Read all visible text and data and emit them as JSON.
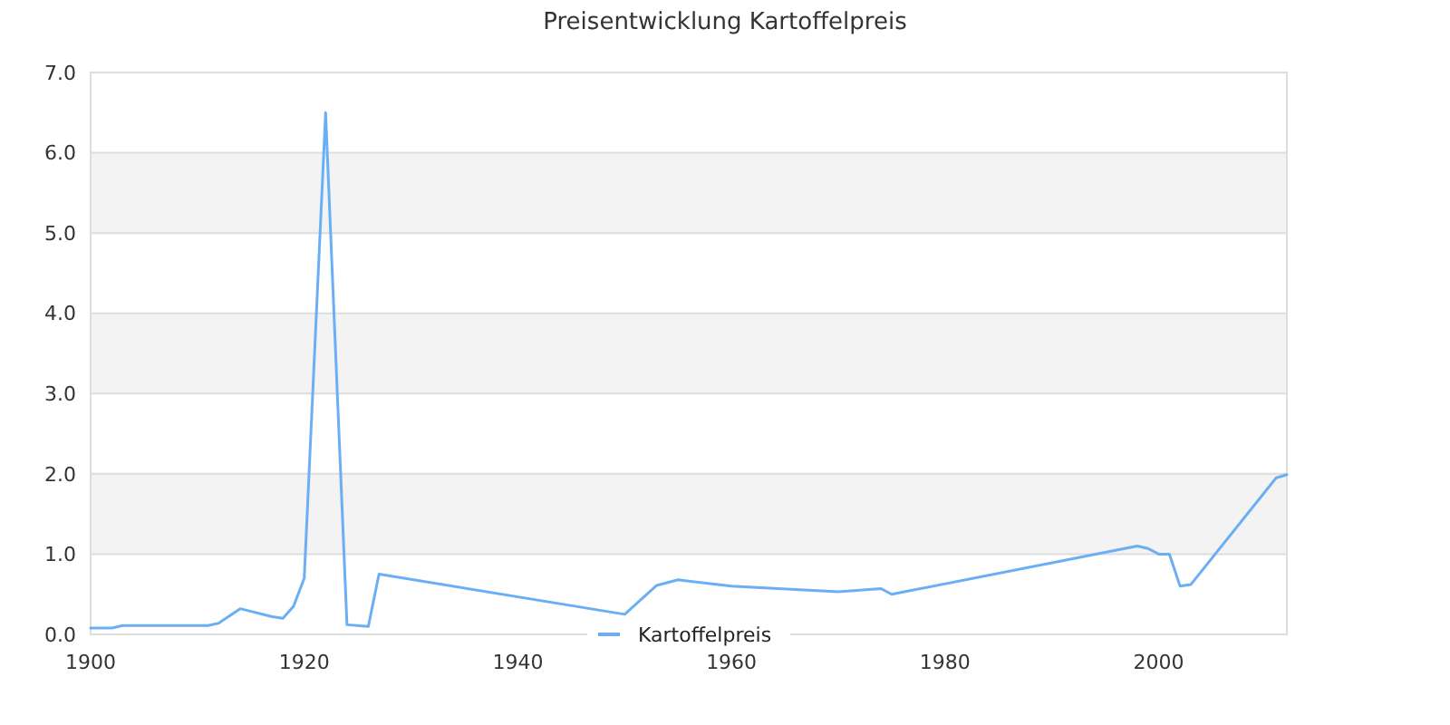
{
  "chart_data": {
    "type": "line",
    "title": "Preisentwicklung Kartoffelpreis",
    "x": [
      1900,
      1902,
      1903,
      1911,
      1912,
      1914,
      1917,
      1918,
      1919,
      1920,
      1922,
      1924,
      1926,
      1927,
      1950,
      1953,
      1955,
      1960,
      1970,
      1974,
      1975,
      1998,
      1999,
      2000,
      2001,
      2002,
      2003,
      2011,
      2012
    ],
    "series": [
      {
        "name": "Kartoffelpreis",
        "color": "#6aaff5",
        "values": [
          0.08,
          0.08,
          0.11,
          0.11,
          0.14,
          0.32,
          0.22,
          0.2,
          0.35,
          0.7,
          6.5,
          0.12,
          0.1,
          0.75,
          0.25,
          0.61,
          0.68,
          0.6,
          0.53,
          0.57,
          0.5,
          1.1,
          1.07,
          1.0,
          1.0,
          0.6,
          0.62,
          1.95,
          1.99
        ]
      }
    ],
    "xlim": [
      1900,
      2012
    ],
    "xticks": [
      1900,
      1920,
      1940,
      1960,
      1980,
      2000
    ],
    "ylim": [
      0,
      7
    ],
    "yticks": [
      {
        "value": 0,
        "label": "0.0"
      },
      {
        "value": 1,
        "label": "1.0"
      },
      {
        "value": 2,
        "label": "2.0"
      },
      {
        "value": 3,
        "label": "3.0"
      },
      {
        "value": 4,
        "label": "4.0"
      },
      {
        "value": 5,
        "label": "5.0"
      },
      {
        "value": 6,
        "label": "6.0"
      },
      {
        "value": 7,
        "label": "7.0"
      }
    ],
    "bands": [
      {
        "axis": "y",
        "from": 1,
        "to": 2,
        "color": "#f3f3f3"
      },
      {
        "axis": "y",
        "from": 3,
        "to": 4,
        "color": "#f3f3f3"
      },
      {
        "axis": "y",
        "from": 5,
        "to": 6,
        "color": "#f3f3f3"
      }
    ],
    "grid": "y",
    "legend": "bottom",
    "marker": "none",
    "line_style": "solid"
  }
}
